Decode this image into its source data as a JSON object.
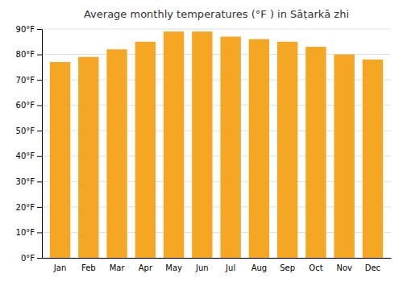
{
  "chart_data": {
    "type": "bar",
    "title": "Average monthly temperatures (°F ) in Sāṭarkā zhi",
    "categories": [
      "Jan",
      "Feb",
      "Mar",
      "Apr",
      "May",
      "Jun",
      "Jul",
      "Aug",
      "Sep",
      "Oct",
      "Nov",
      "Dec"
    ],
    "values": [
      77,
      79,
      82,
      85,
      89,
      89,
      87,
      86,
      85,
      83,
      80,
      78
    ],
    "color": "#F5A623",
    "ylim": [
      0,
      90
    ],
    "yticks": [
      {
        "value": 0,
        "label": "0°F"
      },
      {
        "value": 10,
        "label": "10°F"
      },
      {
        "value": 20,
        "label": "20°F"
      },
      {
        "value": 30,
        "label": "30°F"
      },
      {
        "value": 40,
        "label": "40°F"
      },
      {
        "value": 50,
        "label": "50°F"
      },
      {
        "value": 60,
        "label": "60°F"
      },
      {
        "value": 70,
        "label": "70°F"
      },
      {
        "value": 80,
        "label": "80°F"
      },
      {
        "value": 90,
        "label": "90°F"
      }
    ],
    "grid": true
  }
}
